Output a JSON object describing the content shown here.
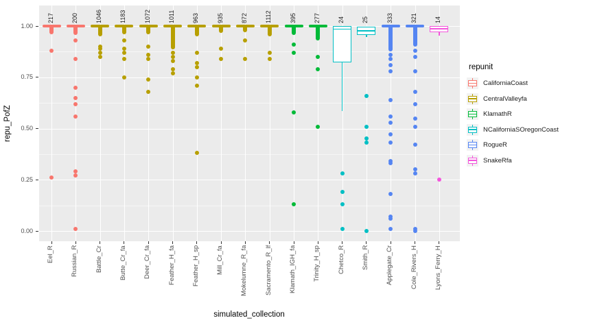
{
  "y_axis": {
    "title": "repu_PofZ",
    "tick_labels": [
      "1.00",
      "0.75",
      "0.50",
      "0.25",
      "0.00"
    ],
    "tick_values": [
      1.0,
      0.75,
      0.5,
      0.25,
      0.0
    ],
    "minor_values": [
      0.875,
      0.625,
      0.375,
      0.125
    ]
  },
  "x_axis": {
    "title": "simulated_collection"
  },
  "legend": {
    "title": "repunit",
    "entries": [
      "CaliforniaCoast",
      "CentralValleyfa",
      "KlamathR",
      "NCaliforniaSOregonCoast",
      "RogueR",
      "SnakeRfa"
    ]
  },
  "palette": {
    "CaliforniaCoast": "#F8766D",
    "CentralValleyfa": "#B79F00",
    "KlamathR": "#00BA38",
    "NCaliforniaSOregonCoast": "#00BFC4",
    "RogueR": "#5585F2",
    "SnakeRfa": "#F356DC"
  },
  "colors": {
    "panel_bg": "#EBEBEB",
    "grid": "#FFFFFF",
    "axis_text": "#4D4D4D",
    "tick_mark": "#333333",
    "legend_key_bg": "#F2F2F2"
  },
  "chart_data": {
    "type": "boxplot-jitter",
    "title": "",
    "xlabel": "simulated_collection",
    "ylabel": "repu_PofZ",
    "ylim": [
      0,
      1.0
    ],
    "grid": true,
    "legend_position": "right",
    "columns": [
      {
        "label": "Eel_R",
        "count": "217",
        "repunit": "CaliforniaCoast",
        "box": {
          "collapsed": true
        },
        "dense_jitter": [
          1.0,
          0.96
        ],
        "points": [
          0.88,
          0.26
        ]
      },
      {
        "label": "Russian_R",
        "count": "200",
        "repunit": "CaliforniaCoast",
        "box": {
          "collapsed": true
        },
        "dense_jitter": [
          1.0,
          0.955
        ],
        "points": [
          0.93,
          0.84,
          0.7,
          0.65,
          0.62,
          0.56,
          0.29,
          0.27,
          0.01
        ]
      },
      {
        "label": "Battle_Cr",
        "count": "1046",
        "repunit": "CentralValleyfa",
        "box": {
          "collapsed": true
        },
        "dense_jitter": [
          1.0,
          0.95
        ],
        "points": [
          0.9,
          0.89,
          0.87,
          0.85
        ]
      },
      {
        "label": "Butte_Cr_fa",
        "count": "1183",
        "repunit": "CentralValleyfa",
        "box": {
          "collapsed": true
        },
        "dense_jitter": [
          1.0,
          0.96
        ],
        "points": [
          0.93,
          0.89,
          0.87,
          0.84,
          0.75
        ]
      },
      {
        "label": "Deer_Cr_fa",
        "count": "1072",
        "repunit": "CentralValleyfa",
        "box": {
          "collapsed": true
        },
        "dense_jitter": [
          1.0,
          0.96
        ],
        "points": [
          0.9,
          0.86,
          0.84,
          0.74,
          0.68
        ]
      },
      {
        "label": "Feather_H_fa",
        "count": "1011",
        "repunit": "CentralValleyfa",
        "box": {
          "collapsed": true
        },
        "dense_jitter": [
          1.0,
          0.885
        ],
        "points": [
          0.87,
          0.85,
          0.83,
          0.79,
          0.77
        ]
      },
      {
        "label": "Feather_H_sp",
        "count": "963",
        "repunit": "CentralValleyfa",
        "box": {
          "collapsed": true
        },
        "dense_jitter": [
          1.0,
          0.95
        ],
        "points": [
          0.87,
          0.82,
          0.8,
          0.75,
          0.71,
          0.38
        ]
      },
      {
        "label": "Mill_Cr_fa",
        "count": "935",
        "repunit": "CentralValleyfa",
        "box": {
          "collapsed": true
        },
        "dense_jitter": [
          1.0,
          0.965
        ],
        "points": [
          0.89,
          0.84
        ]
      },
      {
        "label": "Mokelumne_R_fa",
        "count": "872",
        "repunit": "CentralValleyfa",
        "box": {
          "collapsed": true
        },
        "dense_jitter": [
          1.0,
          0.97
        ],
        "points": [
          0.93,
          0.84
        ]
      },
      {
        "label": "Sacramento_R_lf",
        "count": "1112",
        "repunit": "CentralValleyfa",
        "box": {
          "collapsed": true
        },
        "dense_jitter": [
          1.0,
          0.95
        ],
        "points": [
          0.87,
          0.84
        ]
      },
      {
        "label": "Klamath_IGH_fa",
        "count": "395",
        "repunit": "KlamathR",
        "box": {
          "collapsed": true
        },
        "dense_jitter": [
          1.0,
          0.955
        ],
        "points": [
          0.91,
          0.87,
          0.58,
          0.13
        ]
      },
      {
        "label": "Trinity_H_sp",
        "count": "277",
        "repunit": "KlamathR",
        "box": {
          "collapsed": true
        },
        "dense_jitter": [
          1.0,
          0.93
        ],
        "points": [
          0.85,
          0.79,
          0.51
        ]
      },
      {
        "label": "Chetco_R",
        "count": "24",
        "repunit": "NCaliforniaSOregonCoast",
        "box": {
          "q3": 1.0,
          "median": 0.985,
          "q1": 0.823,
          "whisker_low": 0.585
        },
        "points": [
          0.28,
          0.19,
          0.13,
          0.01
        ]
      },
      {
        "label": "Smith_R",
        "count": "25",
        "repunit": "NCaliforniaSOregonCoast",
        "box": {
          "q3": 0.995,
          "median": 0.977,
          "q1": 0.957,
          "whisker_low": 0.945
        },
        "points": [
          0.66,
          0.51,
          0.45,
          0.43,
          0.0
        ]
      },
      {
        "label": "Applegate_Cr",
        "count": "333",
        "repunit": "RogueR",
        "box": {
          "collapsed": true
        },
        "dense_jitter": [
          1.0,
          0.875
        ],
        "points": [
          0.89,
          0.86,
          0.84,
          0.81,
          0.78,
          0.64,
          0.56,
          0.53,
          0.47,
          0.43,
          0.34,
          0.33,
          0.18,
          0.07,
          0.06,
          0.01
        ]
      },
      {
        "label": "Cole_Rivers_H",
        "count": "321",
        "repunit": "RogueR",
        "box": {
          "collapsed": true
        },
        "dense_jitter": [
          1.0,
          0.9
        ],
        "points": [
          0.88,
          0.85,
          0.78,
          0.68,
          0.62,
          0.55,
          0.51,
          0.42,
          0.3,
          0.28,
          0.01,
          0.0
        ]
      },
      {
        "label": "Lyons_Ferry_H",
        "count": "14",
        "repunit": "SnakeRfa",
        "box": {
          "q3": 1.0,
          "median": 0.987,
          "q1": 0.97,
          "whisker_low": 0.953
        },
        "points": [
          0.25
        ]
      }
    ]
  }
}
